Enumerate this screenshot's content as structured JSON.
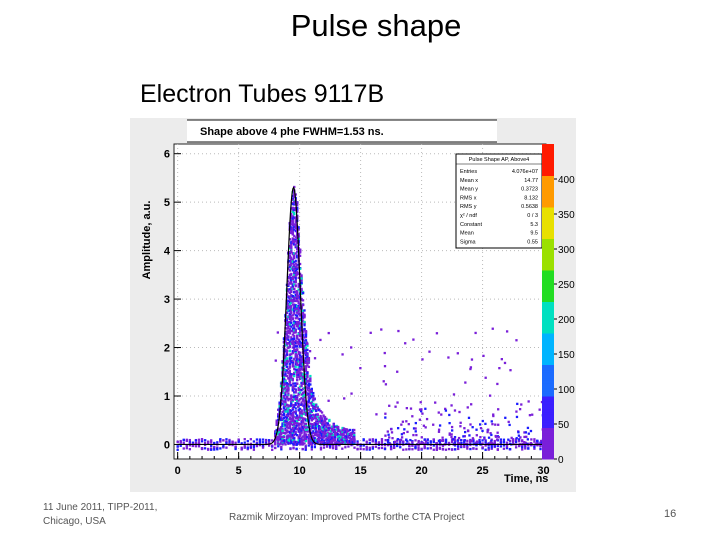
{
  "slide": {
    "title": "Pulse shape",
    "subtitle": "Electron Tubes 9117B",
    "footer_left_line1": "11 June 2011, TIPP-2011,",
    "footer_left_line2": "Chicago, USA",
    "footer_center": "Razmik Mirzoyan: Improved PMTs forthe CTA Project",
    "page_number": "16"
  },
  "chart_data": {
    "type": "heatmap",
    "title": "Shape above 4 phe FWHM=1.53 ns.",
    "xlabel": "Time, ns",
    "ylabel": "Amplitude, a.u.",
    "xlim": [
      -0.3,
      30.2
    ],
    "ylim": [
      -0.3,
      6.2
    ],
    "x_ticks": [
      0,
      5,
      10,
      15,
      20,
      25,
      30
    ],
    "y_ticks": [
      0,
      1,
      2,
      3,
      4,
      5,
      6
    ],
    "colorbar": {
      "ticks": [
        0,
        50,
        100,
        150,
        200,
        250,
        300,
        350,
        400
      ],
      "range": [
        0,
        450
      ],
      "colors": [
        "#ffffff",
        "#7a1fd9",
        "#1b1bff",
        "#00b4ff",
        "#00e0c0",
        "#22dd22",
        "#cfe000",
        "#ff9a00",
        "#ff1a00"
      ]
    },
    "stats_box": {
      "header": "Pulse Shape AP, Above4",
      "rows": [
        {
          "label": "Entries",
          "value": "4.076e+07"
        },
        {
          "label": "Mean x",
          "value": "14.77"
        },
        {
          "label": "Mean y",
          "value": "0.3723"
        },
        {
          "label": "RMS x",
          "value": "8.132"
        },
        {
          "label": "RMS y",
          "value": "0.5638"
        },
        {
          "label": "χ² / ndf",
          "value": "0 / 3"
        },
        {
          "label": "Constant",
          "value": "5.3"
        },
        {
          "label": "Mean",
          "value": "9.5"
        },
        {
          "label": "Sigma",
          "value": "0.55"
        }
      ]
    },
    "fit_curve": {
      "label": "Gaussian fit",
      "constant": 5.3,
      "mean": 9.5,
      "sigma": 0.55
    },
    "pulse_envelope": {
      "time_ns": [
        8.0,
        8.4,
        8.8,
        9.2,
        9.5,
        9.8,
        10.2,
        10.6,
        11.0,
        11.5,
        12.0,
        13.0,
        14.0
      ],
      "amplitude_top": [
        0.3,
        1.0,
        2.5,
        4.6,
        5.4,
        5.0,
        3.4,
        2.2,
        1.2,
        0.8,
        0.6,
        0.4,
        0.3
      ]
    }
  }
}
